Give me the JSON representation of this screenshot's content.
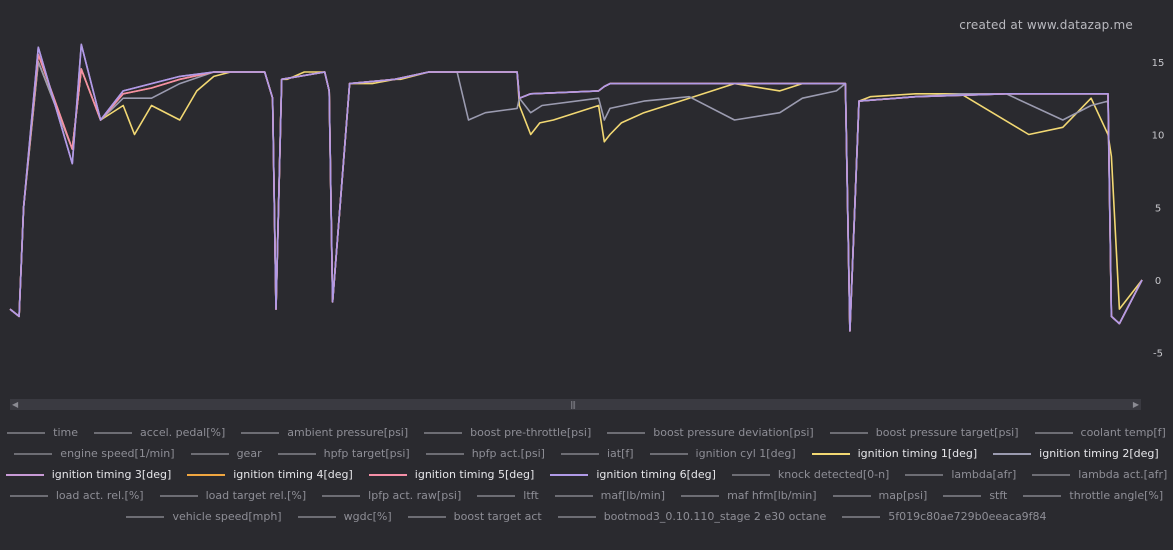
{
  "watermark": "created at www.datazap.me",
  "colors": {
    "background": "#2a2a2f",
    "axis_text": "#c7c7cc",
    "inactive_legend": "#6d6d74",
    "series": {
      "ignition timing 1[deg]": "#f2d873",
      "ignition timing 2[deg]": "#9b9bb0",
      "ignition timing 3[deg]": "#c89ad6",
      "ignition timing 4[deg]": "#f0a640",
      "ignition timing 5[deg]": "#f58fa7",
      "ignition timing 6[deg]": "#b09ae8"
    }
  },
  "chart_data": {
    "type": "line",
    "title": "",
    "xlabel": "",
    "ylabel": "",
    "ylim": [
      -5.5,
      16.5
    ],
    "y_ticks": [
      15,
      10,
      5,
      0,
      -5
    ],
    "y_axis_side": "right",
    "grid": false,
    "x_note": "sample index 0-1000 (x axis not labelled)",
    "series": [
      {
        "name": "ignition timing 1[deg]",
        "x": [
          0,
          8,
          12,
          25,
          55,
          63,
          80,
          100,
          110,
          125,
          150,
          165,
          180,
          195,
          210,
          225,
          232,
          235,
          240,
          245,
          260,
          278,
          282,
          285,
          300,
          320,
          340,
          345,
          370,
          395,
          420,
          440,
          448,
          450,
          460,
          468,
          480,
          520,
          525,
          530,
          540,
          560,
          600,
          640,
          680,
          700,
          730,
          738,
          742,
          750,
          760,
          800,
          820,
          840,
          900,
          930,
          955,
          970,
          973,
          980,
          1000
        ],
        "values": [
          -2,
          -2.5,
          5,
          15,
          9,
          14.5,
          11,
          12,
          10,
          12,
          11,
          13,
          14,
          14.3,
          14.3,
          14.3,
          12.5,
          -2,
          13.8,
          13.8,
          14.3,
          14.3,
          13,
          -1.5,
          13.5,
          13.5,
          13.8,
          13.8,
          14.3,
          14.3,
          14.3,
          14.3,
          14.3,
          12,
          10,
          10.8,
          11,
          12,
          9.5,
          10,
          10.8,
          11.5,
          12.5,
          13.5,
          13,
          13.5,
          13.5,
          13.5,
          -3.5,
          12.3,
          12.6,
          12.8,
          12.8,
          12.8,
          10,
          10.5,
          12.5,
          10,
          8.5,
          -2,
          0
        ]
      },
      {
        "name": "ignition timing 2[deg]",
        "x": [
          0,
          8,
          12,
          25,
          55,
          63,
          80,
          100,
          125,
          150,
          180,
          210,
          225,
          232,
          235,
          240,
          278,
          282,
          285,
          300,
          340,
          370,
          395,
          405,
          420,
          448,
          450,
          460,
          470,
          520,
          525,
          530,
          560,
          600,
          640,
          680,
          700,
          730,
          738,
          742,
          750,
          800,
          840,
          880,
          930,
          955,
          970,
          973,
          980,
          1000
        ],
        "values": [
          -2,
          -2.5,
          5,
          15,
          9,
          14.5,
          11,
          12.5,
          12.5,
          13.5,
          14.3,
          14.3,
          14.3,
          12.5,
          -2,
          13.8,
          14.3,
          13,
          -1.5,
          13.5,
          13.8,
          14.3,
          14.3,
          11,
          11.5,
          11.8,
          12.5,
          11.5,
          12,
          12.5,
          11,
          11.8,
          12.3,
          12.6,
          11,
          11.5,
          12.5,
          13,
          13.5,
          -3.5,
          12.3,
          12.6,
          12.8,
          12.8,
          11,
          12,
          12.3,
          -2.5,
          -3,
          0
        ]
      },
      {
        "name": "ignition timing 3[deg]",
        "x": [
          0,
          8,
          12,
          25,
          40,
          55,
          63,
          80,
          100,
          125,
          150,
          180,
          210,
          225,
          232,
          235,
          240,
          278,
          282,
          285,
          300,
          340,
          370,
          420,
          448,
          450,
          460,
          520,
          525,
          530,
          560,
          640,
          700,
          738,
          742,
          750,
          800,
          880,
          930,
          955,
          970,
          973,
          980,
          1000
        ],
        "values": [
          -2,
          -2.5,
          5,
          16,
          12,
          8,
          16.2,
          11,
          13,
          13.5,
          14,
          14.3,
          14.3,
          14.3,
          12.5,
          -2,
          13.8,
          14.3,
          13,
          -1.5,
          13.5,
          13.8,
          14.3,
          14.3,
          14.3,
          12.5,
          12.8,
          13,
          13.3,
          13.5,
          13.5,
          13.5,
          13.5,
          13.5,
          -3.5,
          12.3,
          12.6,
          12.8,
          12.8,
          12.8,
          12.8,
          -2.5,
          -3,
          0
        ]
      },
      {
        "name": "ignition timing 4[deg]",
        "x": [
          0,
          8,
          12,
          25,
          55,
          63,
          80,
          100,
          125,
          150,
          180,
          210,
          225,
          232,
          235,
          240,
          278,
          282,
          285,
          300,
          340,
          370,
          420,
          448,
          450,
          460,
          520,
          525,
          530,
          560,
          640,
          700,
          738,
          742,
          750,
          800,
          880,
          930,
          955,
          970,
          973,
          980,
          1000
        ],
        "values": [
          -2,
          -2.5,
          5,
          15.5,
          9,
          14.5,
          11,
          12.8,
          13.2,
          13.8,
          14.3,
          14.3,
          14.3,
          12.5,
          -2,
          13.8,
          14.3,
          13,
          -1.5,
          13.5,
          13.8,
          14.3,
          14.3,
          14.3,
          12.5,
          12.8,
          13,
          13.3,
          13.5,
          13.5,
          13.5,
          13.5,
          13.5,
          -3.5,
          12.3,
          12.6,
          12.8,
          12.8,
          12.8,
          12.8,
          -2.5,
          -3,
          0
        ]
      },
      {
        "name": "ignition timing 5[deg]",
        "x": [
          0,
          8,
          12,
          25,
          55,
          63,
          80,
          100,
          125,
          150,
          180,
          210,
          225,
          232,
          235,
          240,
          278,
          282,
          285,
          300,
          340,
          370,
          420,
          448,
          450,
          460,
          520,
          525,
          530,
          560,
          640,
          700,
          738,
          742,
          750,
          800,
          880,
          930,
          955,
          970,
          973,
          980,
          1000
        ],
        "values": [
          -2,
          -2.5,
          5,
          15.5,
          9,
          14.5,
          11,
          12.8,
          13.2,
          13.8,
          14.3,
          14.3,
          14.3,
          12.5,
          -2,
          13.8,
          14.3,
          13,
          -1.5,
          13.5,
          13.8,
          14.3,
          14.3,
          14.3,
          12.5,
          12.8,
          13,
          13.3,
          13.5,
          13.5,
          13.5,
          13.5,
          13.5,
          -3.5,
          12.3,
          12.6,
          12.8,
          12.8,
          12.8,
          12.8,
          -2.5,
          -3,
          0
        ]
      },
      {
        "name": "ignition timing 6[deg]",
        "x": [
          0,
          8,
          12,
          25,
          40,
          55,
          63,
          80,
          100,
          125,
          150,
          180,
          210,
          225,
          232,
          235,
          240,
          278,
          282,
          285,
          300,
          340,
          370,
          420,
          448,
          450,
          460,
          520,
          525,
          530,
          560,
          640,
          700,
          738,
          742,
          750,
          800,
          880,
          930,
          955,
          970,
          973,
          980,
          1000
        ],
        "values": [
          -2,
          -2.5,
          5,
          16,
          12,
          8,
          16.2,
          11,
          13,
          13.5,
          14,
          14.3,
          14.3,
          14.3,
          12.5,
          -2,
          13.8,
          14.3,
          13,
          -1.5,
          13.5,
          13.8,
          14.3,
          14.3,
          14.3,
          12.5,
          12.8,
          13,
          13.3,
          13.5,
          13.5,
          13.5,
          13.5,
          13.5,
          -3.5,
          12.3,
          12.6,
          12.8,
          12.8,
          12.8,
          12.8,
          -2.5,
          -3,
          0
        ]
      }
    ]
  },
  "legend": {
    "rows": [
      [
        "time",
        "accel. pedal[%]",
        "ambient pressure[psi]",
        "boost pre-throttle[psi]",
        "boost pressure deviation[psi]",
        "boost pressure target[psi]",
        "coolant temp[f]"
      ],
      [
        "engine speed[1/min]",
        "gear",
        "hpfp target[psi]",
        "hpfp act.[psi]",
        "iat[f]",
        "ignition cyl 1[deg]",
        "ignition timing 1[deg]",
        "ignition timing 2[deg]"
      ],
      [
        "ignition timing 3[deg]",
        "ignition timing 4[deg]",
        "ignition timing 5[deg]",
        "ignition timing 6[deg]",
        "knock detected[0-n]",
        "lambda[afr]",
        "lambda act.[afr]"
      ],
      [
        "load act. rel.[%]",
        "load target rel.[%]",
        "lpfp act. raw[psi]",
        "ltft",
        "maf[lb/min]",
        "maf hfm[lb/min]",
        "map[psi]",
        "stft",
        "throttle angle[%]"
      ],
      [
        "vehicle speed[mph]",
        "wgdc[%]",
        "boost target act",
        "bootmod3_0.10.110_stage 2 e30 octane",
        "5f019c80ae729b0eeaca9f84"
      ]
    ]
  }
}
